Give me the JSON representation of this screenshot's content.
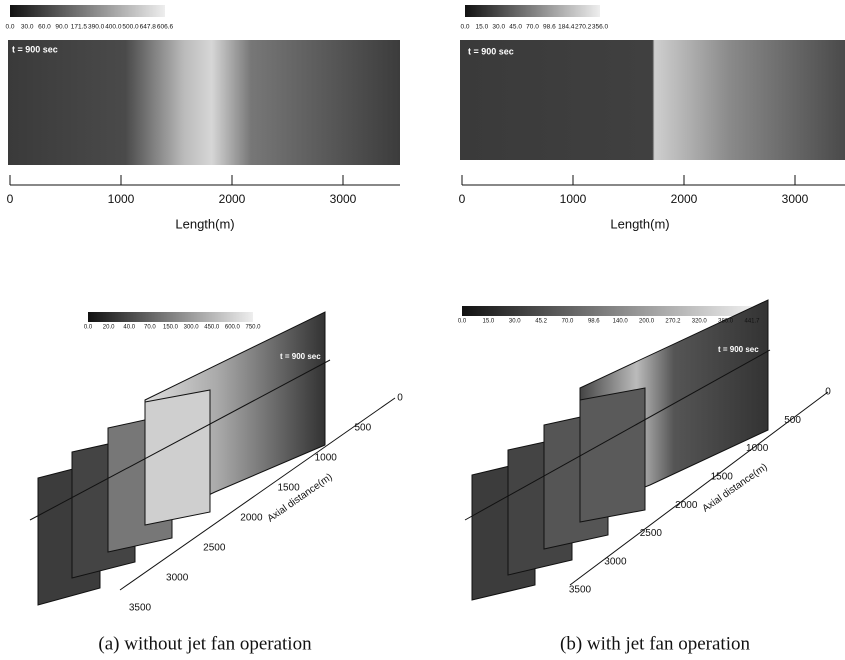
{
  "top_panels": [
    {
      "colorbar_labels": [
        "0.0",
        "30.0",
        "60.0",
        "90.0",
        "171.5",
        "390.0",
        "400.0",
        "500.0",
        "647.8",
        "606.6"
      ],
      "time_label": "t = 900 sec",
      "axis_ticks": [
        "0",
        "1000",
        "2000",
        "3000"
      ],
      "axis_label": "Length(m)"
    },
    {
      "colorbar_labels": [
        "0.0",
        "15.0",
        "30.0",
        "45.0",
        "70.0",
        "98.6",
        "184.4",
        "270.2",
        "356.0"
      ],
      "time_label": "t = 900 sec",
      "axis_ticks": [
        "0",
        "1000",
        "2000",
        "3000"
      ],
      "axis_label": "Length(m)"
    }
  ],
  "bottom_panels": [
    {
      "colorbar_labels": [
        "0.0",
        "20.0",
        "40.0",
        "70.0",
        "150.0",
        "300.0",
        "450.0",
        "600.0",
        "750.0"
      ],
      "time_label": "t = 900 sec",
      "axis_ticks": [
        "0",
        "500",
        "1000",
        "1500",
        "2000",
        "2500",
        "3000",
        "3500"
      ],
      "axis_label": "Axial distance(m)"
    },
    {
      "colorbar_labels": [
        "0.0",
        "15.0",
        "30.0",
        "45.2",
        "70.0",
        "98.6",
        "140.0",
        "200.0",
        "270.2",
        "320.0",
        "380.0",
        "441.7"
      ],
      "time_label": "t = 900 sec",
      "axis_ticks": [
        "0",
        "500",
        "1000",
        "1500",
        "2000",
        "2500",
        "3000",
        "3500"
      ],
      "axis_label": "Axial distance(m)"
    }
  ],
  "captions": [
    "(a) without jet fan operation",
    "(b) with jet fan operation"
  ]
}
